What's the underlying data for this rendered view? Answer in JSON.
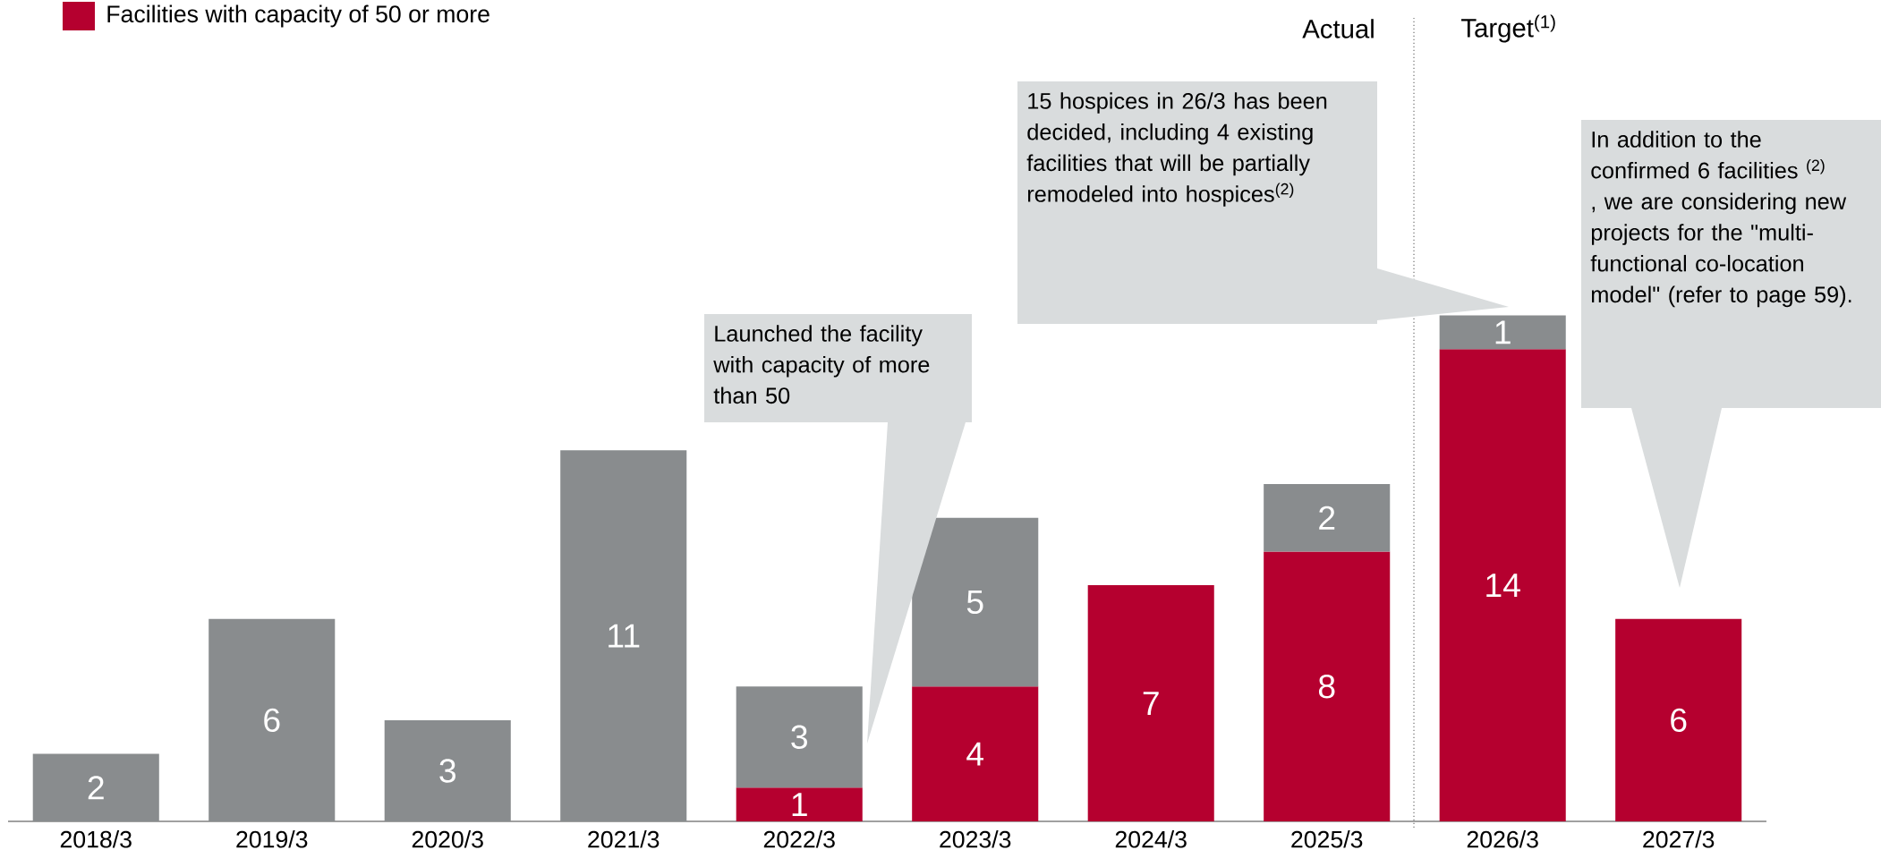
{
  "chart_data": {
    "type": "bar",
    "stacked": true,
    "data_labels": true,
    "legend": "top left",
    "categories": [
      "2018/3",
      "2019/3",
      "2020/3",
      "2021/3",
      "2022/3",
      "2023/3",
      "2024/3",
      "2025/3",
      "2026/3",
      "2027/3"
    ],
    "series": [
      {
        "name": "Facilities with capacity of 50 or more",
        "color": "#b5002f",
        "values": [
          null,
          null,
          null,
          null,
          1,
          4,
          7,
          8,
          14,
          6
        ]
      },
      {
        "color": "#898c8e",
        "values": [
          2,
          6,
          3,
          11,
          3,
          5,
          null,
          2,
          1,
          null
        ]
      }
    ],
    "annotations": [
      "Actual",
      "Target$^{(1)}$",
      "Launched the facility with capacity of more than 50",
      "15 hospices in 26/3 has been decided, including 4 existing facilities that will be partially remodeled into hospices$^{(2)}$",
      "In addition to the confirmed 6 facilities $^{(2)}$ , we are considering new projects for the \"multi-functional co-location model\" (refer to page 59)."
    ]
  }
}
